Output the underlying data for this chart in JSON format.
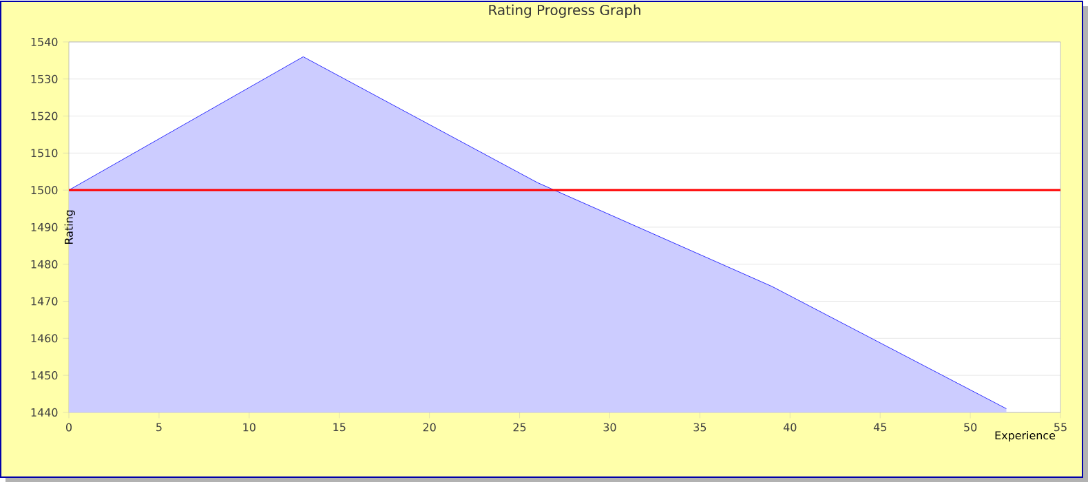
{
  "chart_data": {
    "type": "area",
    "title": "Rating Progress Graph",
    "xlabel": "Experience",
    "ylabel": "Rating",
    "x": [
      0,
      13,
      26,
      39,
      52
    ],
    "series": [
      {
        "color": "#0000ff",
        "values": [
          1500,
          1536,
          1502,
          1474,
          1441
        ]
      }
    ],
    "xlim": [
      0,
      55
    ],
    "xticks": [
      0,
      5,
      10,
      15,
      20,
      25,
      30,
      35,
      40,
      45,
      50,
      55
    ],
    "ylim": [
      1440,
      1540
    ],
    "yticks": [
      1440,
      1450,
      1460,
      1470,
      1480,
      1490,
      1500,
      1510,
      1520,
      1530,
      1540
    ],
    "grid": "y",
    "ref_lines": [
      {
        "axis": "y",
        "value": 1500,
        "color": "#ff0000"
      }
    ]
  }
}
